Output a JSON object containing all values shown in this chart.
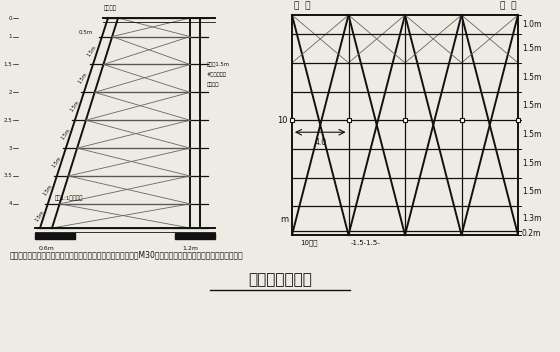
{
  "bg_color": "#eeebe4",
  "title": "施工脚手架简图",
  "note": "注：人工对基础桩动部分进行清理平整，清理后的回坑处，采用M30水泥砂浆填平，确保脚手架基础坚固稳定。",
  "right_labels": [
    "1.0m",
    "1.5m",
    "1.5m",
    "1.5m",
    "1.5m",
    "1.5m",
    "1.5m",
    "1.3m",
    "0.2m"
  ],
  "top_label_left": "马  道",
  "top_label_right": "马  道",
  "dim_label_4": "4.0",
  "dim_label_10": "10",
  "dim_label_m": "m",
  "bottom_label1": "10单排",
  "bottom_label2": "-1.5-1.5-",
  "col_dark": "#111111",
  "col_gray": "#666666",
  "col_med": "#333333"
}
